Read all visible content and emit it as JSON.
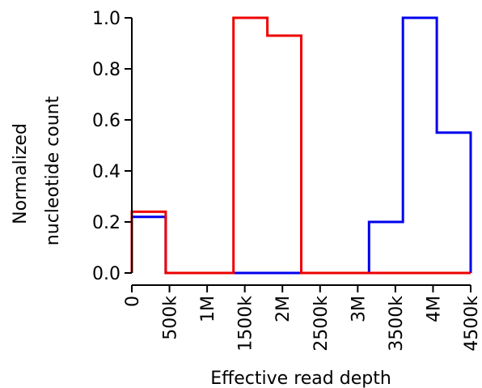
{
  "chart_data": {
    "type": "line",
    "step": "histogram",
    "xlabel": "Effective read depth",
    "ylabel": [
      "Normalized",
      "nucleotide count"
    ],
    "xlim": [
      0,
      4500000
    ],
    "ylim": [
      0,
      1.0
    ],
    "x_ticks": [
      {
        "value": 0,
        "label": "0"
      },
      {
        "value": 500000,
        "label": "500k"
      },
      {
        "value": 1000000,
        "label": "1M"
      },
      {
        "value": 1500000,
        "label": "1500k"
      },
      {
        "value": 2000000,
        "label": "2M"
      },
      {
        "value": 2500000,
        "label": "2500k"
      },
      {
        "value": 3000000,
        "label": "3M"
      },
      {
        "value": 3500000,
        "label": "3500k"
      },
      {
        "value": 4000000,
        "label": "4M"
      },
      {
        "value": 4500000,
        "label": "4500k"
      }
    ],
    "y_ticks": [
      {
        "value": 0.0,
        "label": "0.0"
      },
      {
        "value": 0.2,
        "label": "0.2"
      },
      {
        "value": 0.4,
        "label": "0.4"
      },
      {
        "value": 0.6,
        "label": "0.6"
      },
      {
        "value": 0.8,
        "label": "0.8"
      },
      {
        "value": 1.0,
        "label": "1.0"
      }
    ],
    "bin_edges": [
      0,
      450000,
      900000,
      1350000,
      1800000,
      2250000,
      2700000,
      3150000,
      3600000,
      4050000,
      4500000
    ],
    "series": [
      {
        "color": "#0000ee",
        "values": [
          0.22,
          0,
          0,
          0,
          0,
          0,
          0,
          0.2,
          1.0,
          0.55
        ]
      },
      {
        "color": "#ee0000",
        "values": [
          0.24,
          0,
          0,
          1.0,
          0.93,
          0,
          0,
          0,
          0,
          0
        ]
      }
    ],
    "grid": false,
    "legend": "none"
  }
}
